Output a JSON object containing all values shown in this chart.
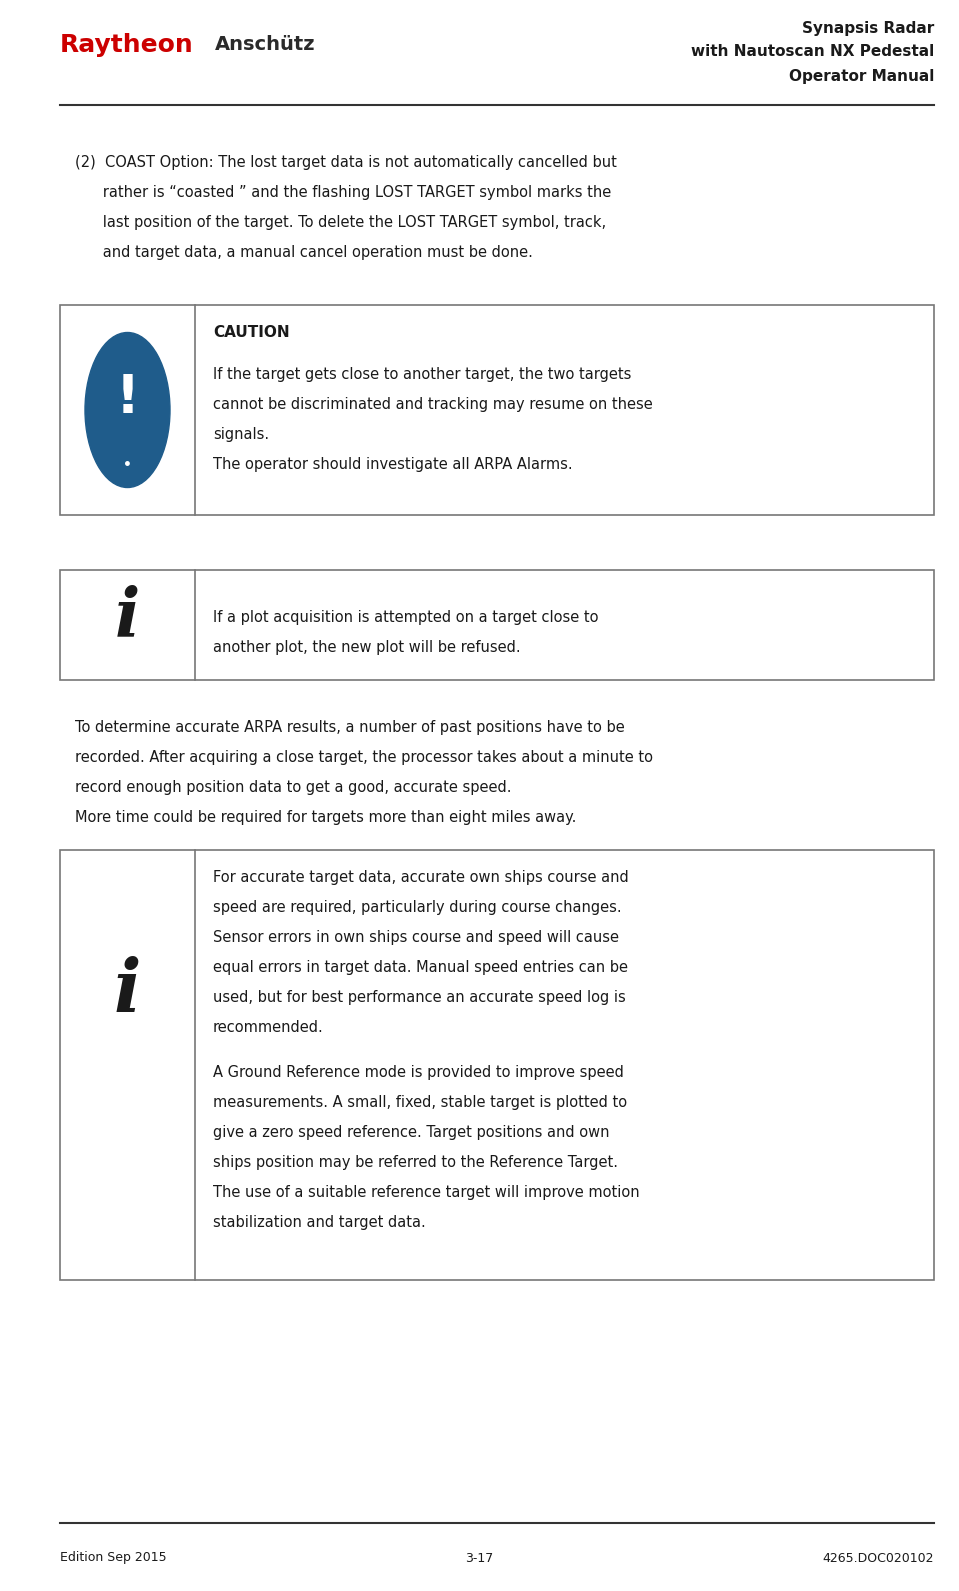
{
  "page_width": 9.59,
  "page_height": 15.91,
  "dpi": 100,
  "bg_color": "#ffffff",
  "header": {
    "raytheon_text": "Raytheon",
    "raytheon_color": "#cc0000",
    "anschutz_text": "Anschütz",
    "anschutz_color": "#2a2a2a",
    "title_line1": "Synapsis Radar",
    "title_line2": "with Nautoscan NX Pedestal",
    "title_line3": "Operator Manual",
    "title_color": "#1a1a1a"
  },
  "footer": {
    "left": "Edition Sep 2015",
    "center": "3-17",
    "right": "4265.DOC020102"
  },
  "coast_text_line1": "(2)  COAST Option: The lost target data is not automatically cancelled but",
  "coast_text_line2": "      rather is “coasted ” and the flashing LOST TARGET symbol marks the",
  "coast_text_line3": "      last position of the target. To delete the LOST TARGET symbol, track,",
  "coast_text_line4": "      and target data, a manual cancel operation must be done.",
  "caution_box": {
    "title": "CAUTION",
    "body_line1": "If the target gets close to another target, the two targets",
    "body_line2": "cannot be discriminated and tracking may resume on these",
    "body_line3": "signals.",
    "body_line4": "The operator should investigate all ARPA Alarms.",
    "icon_color": "#1f5c8b",
    "border_color": "#777777"
  },
  "info_box1": {
    "body_line1": "If a plot acquisition is attempted on a target close to",
    "body_line2": "another plot, the new plot will be refused.",
    "border_color": "#777777"
  },
  "paragraph1_line1": "To determine accurate ARPA results, a number of past positions have to be",
  "paragraph1_line2": "recorded. After acquiring a close target, the processor takes about a minute to",
  "paragraph1_line3": "record enough position data to get a good, accurate speed.",
  "paragraph1_line4": "More time could be required for targets more than eight miles away.",
  "info_box2": {
    "body_p1_line1": "For accurate target data, accurate own ships course and",
    "body_p1_line2": "speed are required, particularly during course changes.",
    "body_p1_line3": "Sensor errors in own ships course and speed will cause",
    "body_p1_line4": "equal errors in target data. Manual speed entries can be",
    "body_p1_line5": "used, but for best performance an accurate speed log is",
    "body_p1_line6": "recommended.",
    "body_p2_line1": "A Ground Reference mode is provided to improve speed",
    "body_p2_line2": "measurements. A small, fixed, stable target is plotted to",
    "body_p2_line3": "give a zero speed reference. Target positions and own",
    "body_p2_line4": "ships position may be referred to the Reference Target.",
    "body_p2_line5": "The use of a suitable reference target will improve motion",
    "body_p2_line6": "stabilization and target data.",
    "border_color": "#777777"
  },
  "text_color": "#1a1a1a",
  "font_size_body": 10.5,
  "font_size_header": 11,
  "font_size_footer": 9,
  "font_size_caution_title": 11
}
